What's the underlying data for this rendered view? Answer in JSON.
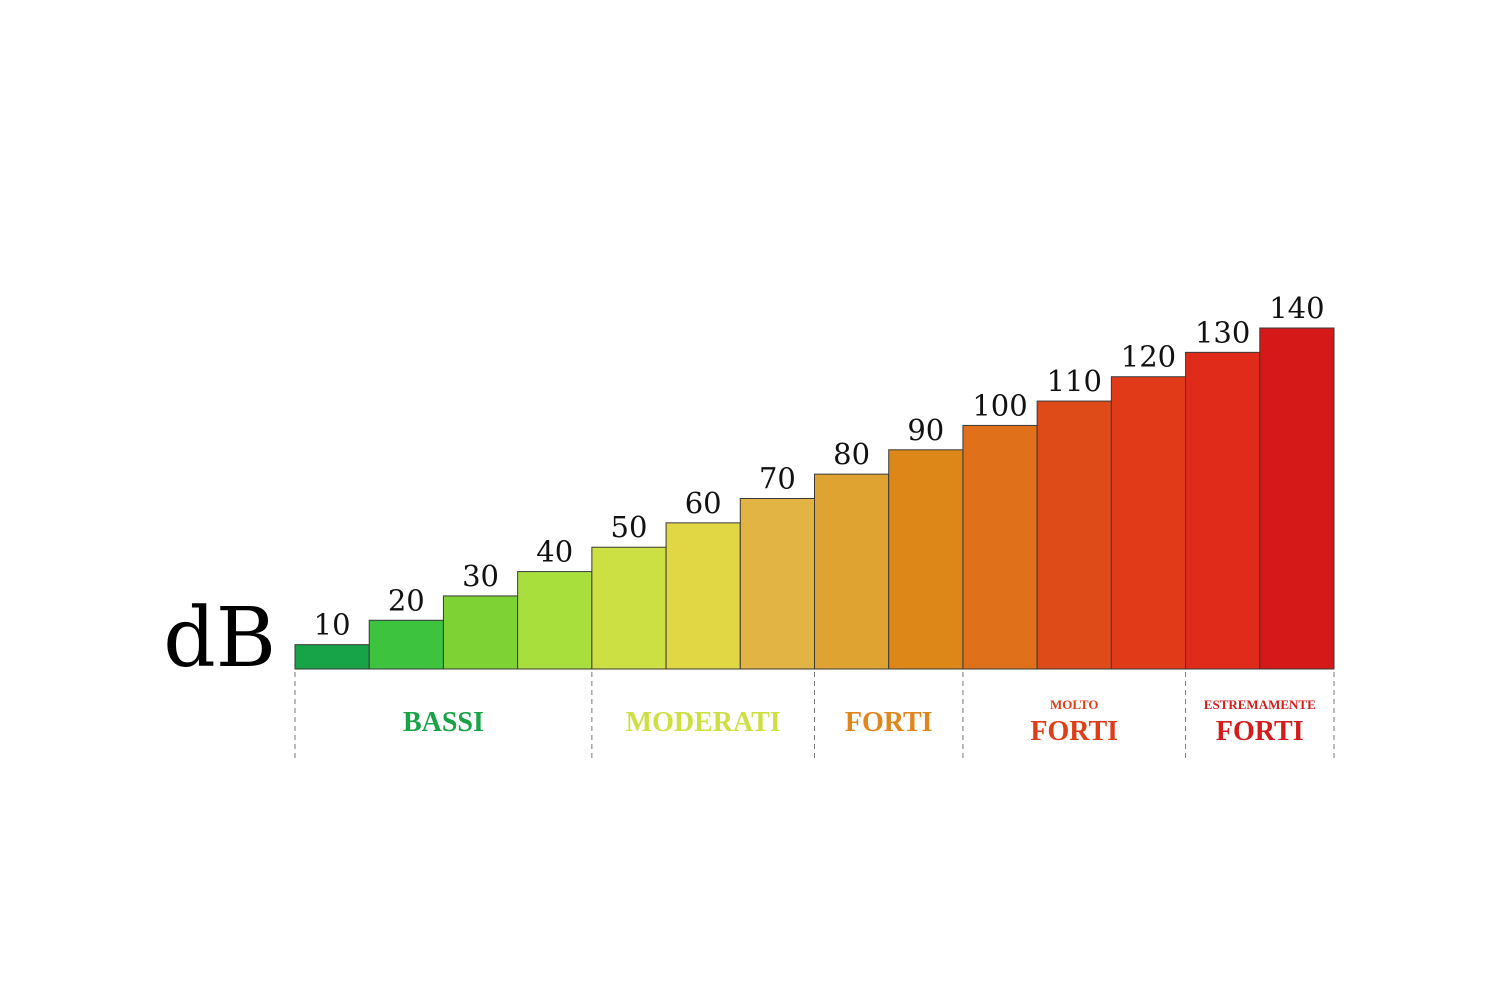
{
  "chart_data": {
    "type": "bar",
    "unit": "dB",
    "categories": [
      "10",
      "20",
      "30",
      "40",
      "50",
      "60",
      "70",
      "80",
      "90",
      "100",
      "110",
      "120",
      "130",
      "140"
    ],
    "values": [
      10,
      20,
      30,
      40,
      50,
      60,
      70,
      80,
      90,
      100,
      110,
      120,
      130,
      140
    ],
    "colors": [
      "#17a347",
      "#3ec33f",
      "#7ed234",
      "#a8df3d",
      "#cde043",
      "#e1d643",
      "#e1b444",
      "#dfa332",
      "#dd8719",
      "#e07019",
      "#df4b18",
      "#e03a19",
      "#e02a1a",
      "#d51818"
    ],
    "ylim": [
      0,
      140
    ],
    "groups": [
      {
        "prefix": "",
        "name": "BASSI",
        "color": "#18a347",
        "from": 0,
        "to": 3
      },
      {
        "prefix": "",
        "name": "MODERATI",
        "color": "#cde043",
        "from": 4,
        "to": 6
      },
      {
        "prefix": "",
        "name": "FORTI",
        "color": "#e0861d",
        "from": 7,
        "to": 8
      },
      {
        "prefix": "MOLTO",
        "name": "FORTI",
        "color": "#df3d18",
        "from": 9,
        "to": 11
      },
      {
        "prefix": "ESTREMAMENTE",
        "name": "FORTI",
        "color": "#d51c1c",
        "from": 12,
        "to": 13
      }
    ],
    "grid": false,
    "legend": "none"
  }
}
